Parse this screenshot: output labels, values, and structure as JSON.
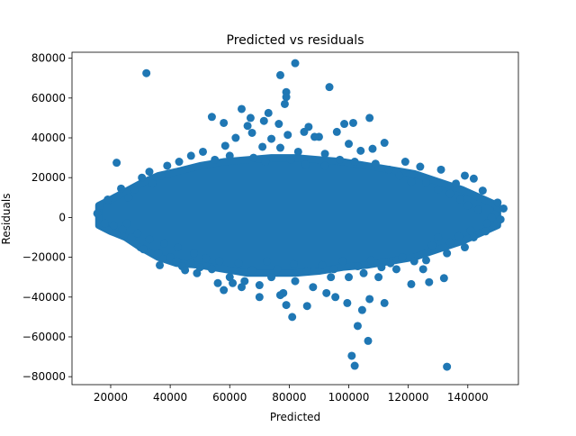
{
  "chart_data": {
    "type": "scatter",
    "title": "Predicted vs residuals",
    "xlabel": "Predicted",
    "ylabel": "Residuals",
    "xlim": [
      7000,
      157000
    ],
    "ylim": [
      -84000,
      83000
    ],
    "x_ticks": [
      20000,
      40000,
      60000,
      80000,
      100000,
      120000,
      140000
    ],
    "y_ticks": [
      -80000,
      -60000,
      -40000,
      -20000,
      0,
      20000,
      40000,
      60000,
      80000
    ],
    "x_tick_labels": [
      "20000",
      "40000",
      "60000",
      "80000",
      "100000",
      "120000",
      "140000"
    ],
    "y_tick_labels": [
      "−80000",
      "−60000",
      "−40000",
      "−20000",
      "0",
      "20000",
      "40000",
      "60000",
      "80000"
    ],
    "marker_color": "#1f77b4",
    "grid": false,
    "series": [
      {
        "points": [
          [
            32000,
            72500
          ],
          [
            82000,
            77500
          ],
          [
            77000,
            71500
          ],
          [
            79000,
            63000
          ],
          [
            79000,
            60500
          ],
          [
            78500,
            57000
          ],
          [
            93500,
            65500
          ],
          [
            54000,
            50500
          ],
          [
            64000,
            54500
          ],
          [
            67000,
            50000
          ],
          [
            73000,
            52500
          ],
          [
            71500,
            48500
          ],
          [
            58000,
            47500
          ],
          [
            66000,
            46000
          ],
          [
            76500,
            47000
          ],
          [
            86500,
            45500
          ],
          [
            98500,
            47000
          ],
          [
            101500,
            47500
          ],
          [
            107000,
            50000
          ],
          [
            85000,
            43000
          ],
          [
            96000,
            43000
          ],
          [
            90000,
            40500
          ],
          [
            88500,
            40500
          ],
          [
            79500,
            41500
          ],
          [
            67500,
            42500
          ],
          [
            74000,
            39500
          ],
          [
            62000,
            40000
          ],
          [
            58500,
            36000
          ],
          [
            77000,
            35000
          ],
          [
            83000,
            33000
          ],
          [
            71000,
            35500
          ],
          [
            92000,
            32000
          ],
          [
            100000,
            37000
          ],
          [
            108000,
            34500
          ],
          [
            112000,
            37500
          ],
          [
            104000,
            33500
          ],
          [
            22000,
            27500
          ],
          [
            33000,
            23000
          ],
          [
            119000,
            28000
          ],
          [
            124000,
            25500
          ],
          [
            131000,
            24000
          ],
          [
            142000,
            19500
          ],
          [
            139000,
            21000
          ],
          [
            136000,
            17000
          ],
          [
            145000,
            13500
          ],
          [
            150000,
            7500
          ],
          [
            152000,
            4500
          ],
          [
            149000,
            1500
          ],
          [
            151000,
            -1000
          ],
          [
            146000,
            -7000
          ],
          [
            148000,
            0
          ],
          [
            142000,
            -10000
          ],
          [
            139000,
            -15000
          ],
          [
            133000,
            -18000
          ],
          [
            128000,
            -14000
          ],
          [
            125000,
            -26000
          ],
          [
            121000,
            -33500
          ],
          [
            127000,
            -32500
          ],
          [
            132000,
            -30500
          ],
          [
            116000,
            -26000
          ],
          [
            110000,
            -30000
          ],
          [
            105000,
            -28000
          ],
          [
            100000,
            -30000
          ],
          [
            94000,
            -30000
          ],
          [
            88000,
            -35000
          ],
          [
            82000,
            -32000
          ],
          [
            78000,
            -38000
          ],
          [
            74000,
            -30000
          ],
          [
            70000,
            -34000
          ],
          [
            65000,
            -32000
          ],
          [
            58000,
            -36500
          ],
          [
            60000,
            -30000
          ],
          [
            54000,
            -26000
          ],
          [
            50000,
            -25000
          ],
          [
            47000,
            -23000
          ],
          [
            44000,
            -24500
          ],
          [
            40000,
            -20000
          ],
          [
            36000,
            -18000
          ],
          [
            30000,
            -15000
          ],
          [
            27000,
            -10000
          ],
          [
            24000,
            -6000
          ],
          [
            21000,
            -4000
          ],
          [
            18000,
            -3000
          ],
          [
            15500,
            2000
          ],
          [
            16500,
            6000
          ],
          [
            19000,
            9000
          ],
          [
            23500,
            14500
          ],
          [
            26000,
            10000
          ],
          [
            28000,
            14000
          ],
          [
            30500,
            20000
          ],
          [
            34000,
            17000
          ],
          [
            37000,
            21000
          ],
          [
            39000,
            26000
          ],
          [
            43000,
            28000
          ],
          [
            47000,
            31000
          ],
          [
            51000,
            33000
          ],
          [
            55000,
            29000
          ],
          [
            60000,
            31000
          ],
          [
            68000,
            30000
          ],
          [
            72000,
            28000
          ],
          [
            80500,
            29000
          ],
          [
            85500,
            26500
          ],
          [
            92000,
            26000
          ],
          [
            97000,
            29000
          ],
          [
            102000,
            28000
          ],
          [
            109000,
            27000
          ],
          [
            113500,
            24000
          ],
          [
            117000,
            21000
          ],
          [
            121000,
            18000
          ],
          [
            126000,
            17500
          ],
          [
            130000,
            14000
          ],
          [
            134000,
            12000
          ],
          [
            137500,
            9000
          ],
          [
            140000,
            6000
          ],
          [
            143500,
            4000
          ],
          [
            146500,
            -3000
          ],
          [
            141000,
            -6500
          ],
          [
            137000,
            -9500
          ],
          [
            134000,
            -12500
          ],
          [
            130000,
            -10000
          ],
          [
            126000,
            -21500
          ],
          [
            122000,
            -22000
          ],
          [
            118000,
            -20000
          ],
          [
            114000,
            -23000
          ],
          [
            111000,
            -25000
          ],
          [
            107500,
            -21500
          ],
          [
            103000,
            -24500
          ],
          [
            98000,
            -22000
          ],
          [
            95000,
            -26000
          ],
          [
            91000,
            -24000
          ],
          [
            86000,
            -27000
          ],
          [
            81500,
            -23500
          ],
          [
            76000,
            -26000
          ],
          [
            72500,
            -22000
          ],
          [
            67500,
            -26500
          ],
          [
            63000,
            -23000
          ],
          [
            56500,
            -22000
          ],
          [
            52000,
            -20500
          ],
          [
            48000,
            -18000
          ],
          [
            42500,
            -15000
          ],
          [
            38000,
            -13000
          ],
          [
            33000,
            -11000
          ],
          [
            29000,
            -8000
          ],
          [
            25500,
            -3000
          ],
          [
            81000,
            -50000
          ],
          [
            79000,
            -44000
          ],
          [
            86000,
            -44500
          ],
          [
            99500,
            -43000
          ],
          [
            104500,
            -46500
          ],
          [
            106500,
            -62000
          ],
          [
            103000,
            -54500
          ],
          [
            101000,
            -69500
          ],
          [
            102000,
            -74500
          ],
          [
            133000,
            -75000
          ],
          [
            112000,
            -43000
          ],
          [
            107000,
            -41000
          ],
          [
            95500,
            -40000
          ],
          [
            92500,
            -38000
          ],
          [
            77000,
            -39000
          ],
          [
            70000,
            -40000
          ],
          [
            64000,
            -35000
          ],
          [
            56000,
            -33000
          ],
          [
            61000,
            -33000
          ],
          [
            49000,
            -28000
          ],
          [
            45000,
            -26500
          ],
          [
            36500,
            -24000
          ],
          [
            42000,
            -22000
          ],
          [
            31000,
            -16000
          ]
        ]
      }
    ]
  }
}
